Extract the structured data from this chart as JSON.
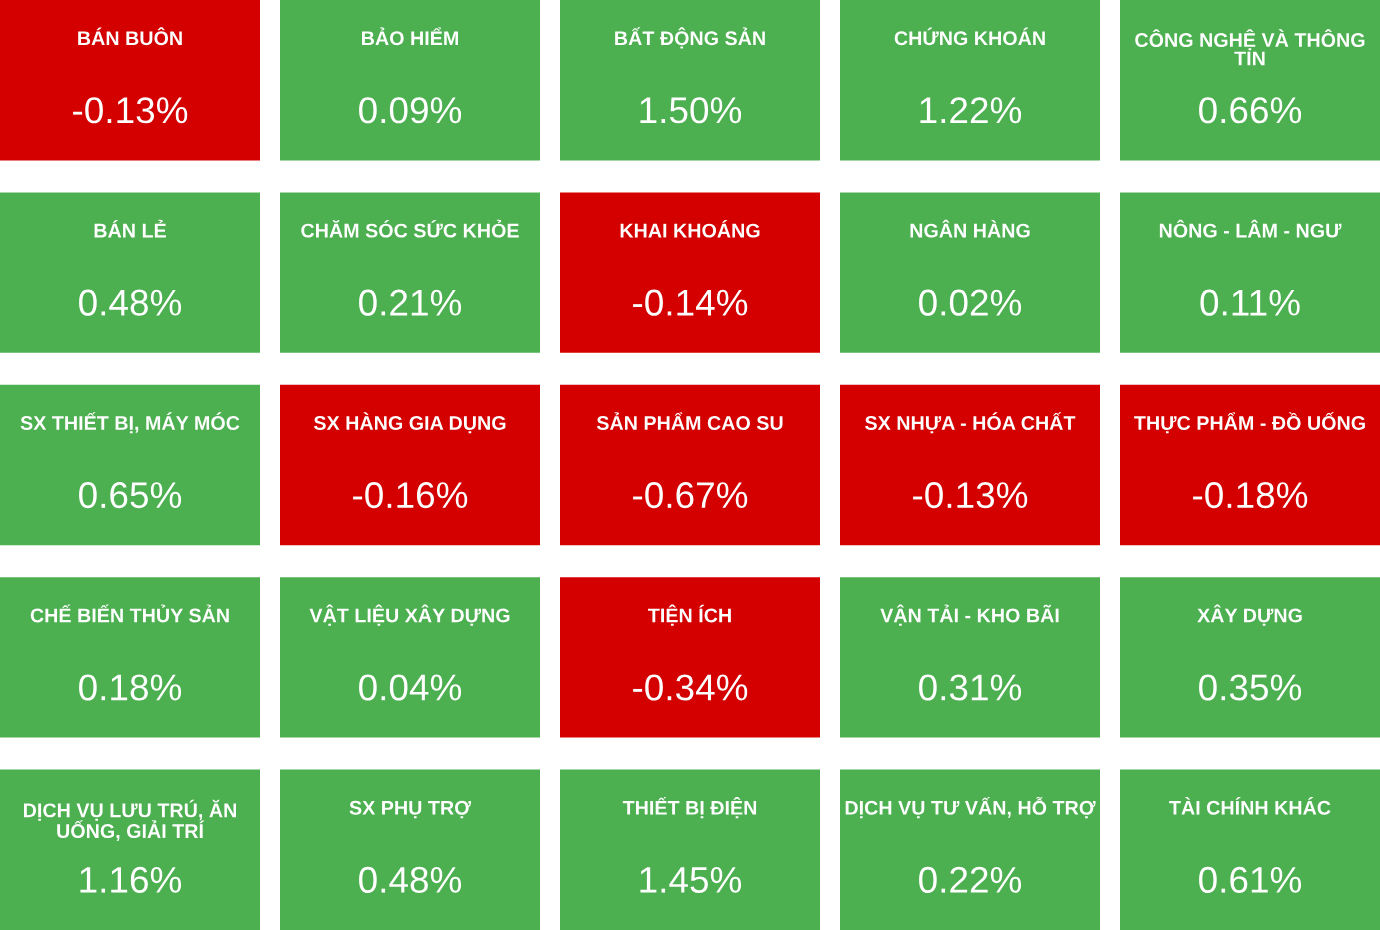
{
  "chart_data": {
    "type": "other",
    "categories": [
      "BÁN BUÔN",
      "BẢO HIỂM",
      "BẤT ĐỘNG SẢN",
      "CHỨNG KHOÁN",
      "CÔNG NGHỆ VÀ THÔNG TIN",
      "BÁN LẺ",
      "CHĂM SÓC SỨC KHỎE",
      "KHAI KHOÁNG",
      "NGÂN HÀNG",
      "NÔNG - LÂM - NGƯ",
      "SX THIẾT BỊ, MÁY MÓC",
      "SX HÀNG GIA DỤNG",
      "SẢN PHẨM CAO SU",
      "SX NHỰA - HÓA CHẤT",
      "THỰC PHẨM - ĐỒ UỐNG",
      "CHẾ BIẾN THỦY SẢN",
      "VẬT LIỆU XÂY DỰNG",
      "TIỆN ÍCH",
      "VẬN TẢI - KHO BÃI",
      "XÂY DỰNG",
      "DỊCH VỤ LƯU TRÚ, ĂN UỐNG, GIẢI TRÍ",
      "SX PHỤ TRỢ",
      "THIẾT BỊ ĐIỆN",
      "DỊCH VỤ TƯ VẤN, HỖ TRỢ",
      "TÀI CHÍNH KHÁC"
    ],
    "values": [
      -0.13,
      0.09,
      1.5,
      1.22,
      0.66,
      0.48,
      0.21,
      -0.14,
      0.02,
      0.11,
      0.65,
      -0.16,
      -0.67,
      -0.13,
      -0.18,
      0.18,
      0.04,
      -0.34,
      0.31,
      0.35,
      1.16,
      0.48,
      1.45,
      0.22,
      0.61
    ],
    "value_labels": [
      "-0.13%",
      "0.09%",
      "1.50%",
      "1.22%",
      "0.66%",
      "0.48%",
      "0.21%",
      "-0.14%",
      "0.02%",
      "0.11%",
      "0.65%",
      "-0.16%",
      "-0.67%",
      "-0.13%",
      "-0.18%",
      "0.18%",
      "0.04%",
      "-0.34%",
      "0.31%",
      "0.35%",
      "1.16%",
      "0.48%",
      "1.45%",
      "0.22%",
      "0.61%"
    ],
    "colors": [
      "#d40000",
      "#4caf50",
      "#4caf50",
      "#4caf50",
      "#4caf50",
      "#4caf50",
      "#4caf50",
      "#d40000",
      "#4caf50",
      "#4caf50",
      "#4caf50",
      "#d40000",
      "#d40000",
      "#d40000",
      "#d40000",
      "#4caf50",
      "#4caf50",
      "#d40000",
      "#4caf50",
      "#4caf50",
      "#4caf50",
      "#4caf50",
      "#4caf50",
      "#4caf50",
      "#4caf50"
    ]
  }
}
